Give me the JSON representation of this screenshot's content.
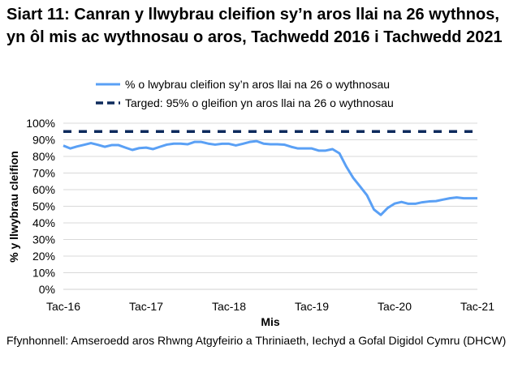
{
  "chart_data": {
    "type": "line",
    "title": "Siart 11: Canran y llwybrau cleifion sy’n aros llai na 26 wythnos, yn ôl mis ac wythnosau o aros, Tachwedd 2016 i Tachwedd 2021",
    "xlabel": "Mis",
    "ylabel": "% y llwybrau cleifion",
    "x_tick_labels": [
      "Tac-16",
      "Tac-17",
      "Tac-18",
      "Tac-19",
      "Tac-20",
      "Tac-21"
    ],
    "y_tick_labels": [
      "0%",
      "10%",
      "20%",
      "30%",
      "40%",
      "50%",
      "60%",
      "70%",
      "80%",
      "90%",
      "100%"
    ],
    "ylim": [
      0,
      100
    ],
    "xrange": [
      "Nov 2016",
      "Nov 2021"
    ],
    "grid": true,
    "legend_placement": "top",
    "series": [
      {
        "name": "% o lwybrau cleifion sy’n aros llai na 26 o wythnosau",
        "color": "#5aa0f5",
        "style": "solid",
        "values": [
          86.5,
          84.8,
          86,
          87,
          88,
          87,
          85.8,
          86.8,
          86.8,
          85.3,
          83.9,
          85,
          85.3,
          84.4,
          85.8,
          87.1,
          87.7,
          87.7,
          87.3,
          88.7,
          88.7,
          87.7,
          87.1,
          87.6,
          87.6,
          86.6,
          87.6,
          88.7,
          89.2,
          87.7,
          87.3,
          87.3,
          87.1,
          85.8,
          84.8,
          84.8,
          84.8,
          83.5,
          83.5,
          84.4,
          81.9,
          73.9,
          67.1,
          61.9,
          56.6,
          48.1,
          44.8,
          49,
          51.6,
          52.6,
          51.5,
          51.5,
          52.4,
          52.9,
          53.1,
          54,
          54.8,
          55.3,
          54.8,
          54.8,
          54.8
        ]
      },
      {
        "name": "Targed: 95% o gleifion yn aros llai na 26 o wythnosau",
        "color": "#0d2a5c",
        "style": "dashed",
        "values": [
          95
        ]
      }
    ]
  },
  "source": "Ffynhonnell: Amseroedd aros Rhwng Atgyfeirio a Thriniaeth, Iechyd a Gofal Digidol Cymru (DHCW)"
}
